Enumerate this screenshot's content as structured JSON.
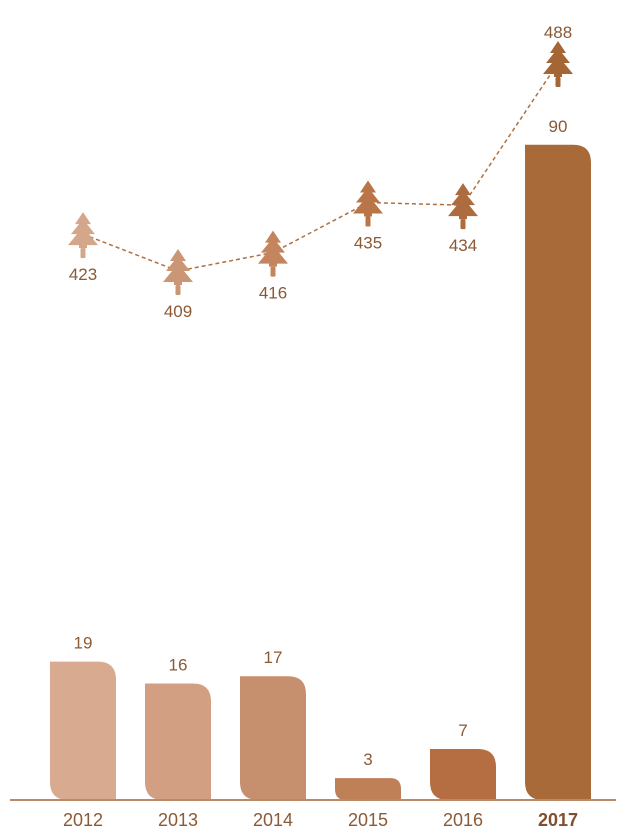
{
  "chart_data": {
    "type": "bar",
    "categories": [
      "2012",
      "2013",
      "2014",
      "2015",
      "2016",
      "2017"
    ],
    "highlight_category": "2017",
    "series": [
      {
        "values": [
          19,
          16,
          17,
          3,
          7,
          90
        ]
      },
      {
        "values": [
          423,
          409,
          416,
          435,
          434,
          488
        ]
      }
    ],
    "colors": {
      "bars": [
        "#d8ab90",
        "#d29f82",
        "#c68f6d",
        "#bf7f57",
        "#b46e42",
        "#a86a38"
      ],
      "line_markers": [
        "#d4a78b",
        "#cb9676",
        "#c4845d",
        "#b97448",
        "#ad6b3f",
        "#a46635"
      ],
      "connector": "#b06f3f",
      "axis": "#b98a67",
      "text": "#8a5a36"
    },
    "bar_marker_icon": "tree-icon",
    "grid": false,
    "legend": "none",
    "title": "",
    "xlabel": "",
    "ylabel": ""
  }
}
